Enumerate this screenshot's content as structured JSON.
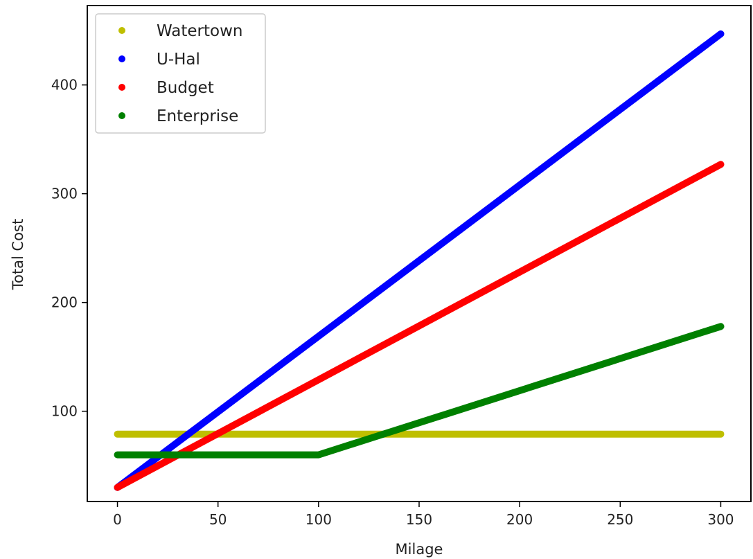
{
  "chart_data": {
    "type": "scatter",
    "title": "",
    "xlabel": "Milage",
    "ylabel": "Total Cost",
    "xlim": [
      -15,
      315
    ],
    "ylim": [
      17,
      473
    ],
    "xticks": [
      0,
      50,
      100,
      150,
      200,
      250,
      300
    ],
    "yticks": [
      100,
      200,
      300,
      400
    ],
    "grid": false,
    "legend_position": "top-left",
    "series": [
      {
        "name": "Watertown",
        "color": "#bfbf00",
        "points": [
          [
            0,
            78.95
          ],
          [
            300,
            78.95
          ]
        ]
      },
      {
        "name": "U-Hal",
        "color": "#0000ff",
        "points": [
          [
            0,
            29.95
          ],
          [
            300,
            446.95
          ]
        ]
      },
      {
        "name": "Budget",
        "color": "#ff0000",
        "points": [
          [
            0,
            29.95
          ],
          [
            300,
            326.95
          ]
        ]
      },
      {
        "name": "Enterprise",
        "color": "#008000",
        "points": [
          [
            0,
            59.95
          ],
          [
            100,
            59.95
          ],
          [
            300,
            177.95
          ]
        ]
      }
    ]
  }
}
